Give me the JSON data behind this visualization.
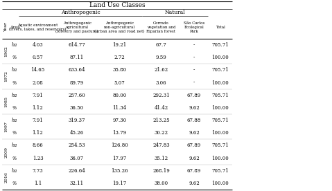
{
  "title": "Land Use Classes",
  "col_headers": [
    "Aquatic environment\n(rivers, lakes, and reservoirs)",
    "Anthropogenic\nagricultural\n(forestry and pasture)",
    "Anthropogenic\nnon-agricultural\n(urban area and road net)",
    "Cerrado\nvegetation and\nRiparian forest",
    "São Carlos\nEcological\nPark",
    "Total"
  ],
  "row_headers_area": [
    "ha",
    "%",
    "ha",
    "%",
    "ha",
    "%",
    "ha",
    "%",
    "ha",
    "%",
    "ha",
    "%"
  ],
  "data": [
    [
      "4.03",
      "614.77",
      "19.21",
      "67.7",
      "-",
      "705.71"
    ],
    [
      "0.57",
      "87.11",
      "2.72",
      "9.59",
      "-",
      "100.00"
    ],
    [
      "14.65",
      "633.64",
      "35.80",
      "21.62",
      "-",
      "705.71"
    ],
    [
      "2.08",
      "89.79",
      "5.07",
      "3.06",
      "-",
      "100.00"
    ],
    [
      "7.91",
      "257.60",
      "80.00",
      "292.31",
      "67.89",
      "705.71"
    ],
    [
      "1.12",
      "36.50",
      "11.34",
      "41.42",
      "9.62",
      "100.00"
    ],
    [
      "7.91",
      "319.37",
      "97.30",
      "213.25",
      "67.88",
      "705.71"
    ],
    [
      "1.12",
      "45.26",
      "13.79",
      "30.22",
      "9.62",
      "100.00"
    ],
    [
      "8.66",
      "254.53",
      "126.80",
      "247.83",
      "67.89",
      "705.71"
    ],
    [
      "1.23",
      "36.07",
      "17.97",
      "35.12",
      "9.62",
      "100.00"
    ],
    [
      "7.73",
      "226.64",
      "135.26",
      "268.19",
      "67.89",
      "705.71"
    ],
    [
      "1.1",
      "32.11",
      "19.17",
      "38.00",
      "9.62",
      "100.00"
    ]
  ],
  "years": [
    "1962",
    "1972",
    "1985",
    "1997",
    "2009",
    "2016"
  ],
  "bg_color": "#f5f0eb",
  "line_color": "#888888"
}
